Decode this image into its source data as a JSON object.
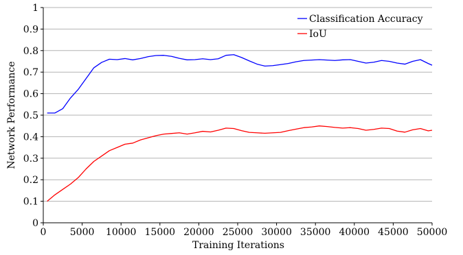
{
  "chart_data": {
    "type": "line",
    "xlabel": "Training Iterations",
    "ylabel": "Network Performance",
    "xlim": [
      0,
      50000
    ],
    "ylim": [
      0,
      1
    ],
    "xticks": [
      "0",
      "5000",
      "10000",
      "15000",
      "20000",
      "25000",
      "30000",
      "35000",
      "40000",
      "45000",
      "50000"
    ],
    "yticks": [
      "0",
      "0.1",
      "0.2",
      "0.3",
      "0.4",
      "0.5",
      "0.6",
      "0.7",
      "0.8",
      "0.9",
      "1"
    ],
    "grid": "horizontal",
    "legend_position": "top-right",
    "series": [
      {
        "name": "Classification Accuracy",
        "color": "#0000ff",
        "x": [
          500,
          1500,
          2500,
          3500,
          4500,
          5500,
          6500,
          7500,
          8500,
          9500,
          10500,
          11500,
          12500,
          13500,
          14500,
          15500,
          16500,
          17500,
          18500,
          19500,
          20500,
          21500,
          22500,
          23500,
          24500,
          25500,
          26500,
          27500,
          28500,
          29500,
          30500,
          31500,
          32500,
          33500,
          34500,
          35500,
          36500,
          37500,
          38500,
          39500,
          40500,
          41500,
          42500,
          43500,
          44500,
          45500,
          46500,
          47500,
          48500,
          49500,
          50000
        ],
        "values": [
          0.51,
          0.51,
          0.53,
          0.58,
          0.62,
          0.67,
          0.72,
          0.745,
          0.76,
          0.758,
          0.763,
          0.757,
          0.763,
          0.772,
          0.777,
          0.778,
          0.773,
          0.764,
          0.757,
          0.758,
          0.762,
          0.758,
          0.762,
          0.778,
          0.781,
          0.768,
          0.752,
          0.737,
          0.728,
          0.73,
          0.735,
          0.74,
          0.748,
          0.754,
          0.756,
          0.758,
          0.756,
          0.754,
          0.757,
          0.758,
          0.75,
          0.742,
          0.746,
          0.754,
          0.75,
          0.742,
          0.737,
          0.75,
          0.758,
          0.74,
          0.732
        ]
      },
      {
        "name": "IoU",
        "color": "#ff0000",
        "x": [
          500,
          1500,
          2500,
          3500,
          4500,
          5500,
          6500,
          7500,
          8500,
          9500,
          10500,
          11500,
          12500,
          13500,
          14500,
          15500,
          16500,
          17500,
          18500,
          19500,
          20500,
          21500,
          22500,
          23500,
          24500,
          25500,
          26500,
          27500,
          28500,
          29500,
          30500,
          31500,
          32500,
          33500,
          34500,
          35500,
          36500,
          37500,
          38500,
          39500,
          40500,
          41500,
          42500,
          43500,
          44500,
          45500,
          46500,
          47500,
          48500,
          49500,
          50000
        ],
        "values": [
          0.1,
          0.13,
          0.155,
          0.18,
          0.21,
          0.25,
          0.285,
          0.31,
          0.335,
          0.35,
          0.365,
          0.37,
          0.385,
          0.395,
          0.405,
          0.412,
          0.415,
          0.418,
          0.412,
          0.418,
          0.425,
          0.422,
          0.43,
          0.44,
          0.438,
          0.428,
          0.42,
          0.418,
          0.416,
          0.418,
          0.42,
          0.428,
          0.435,
          0.442,
          0.445,
          0.45,
          0.447,
          0.443,
          0.44,
          0.442,
          0.438,
          0.43,
          0.434,
          0.44,
          0.438,
          0.426,
          0.421,
          0.432,
          0.438,
          0.427,
          0.43
        ]
      }
    ]
  }
}
